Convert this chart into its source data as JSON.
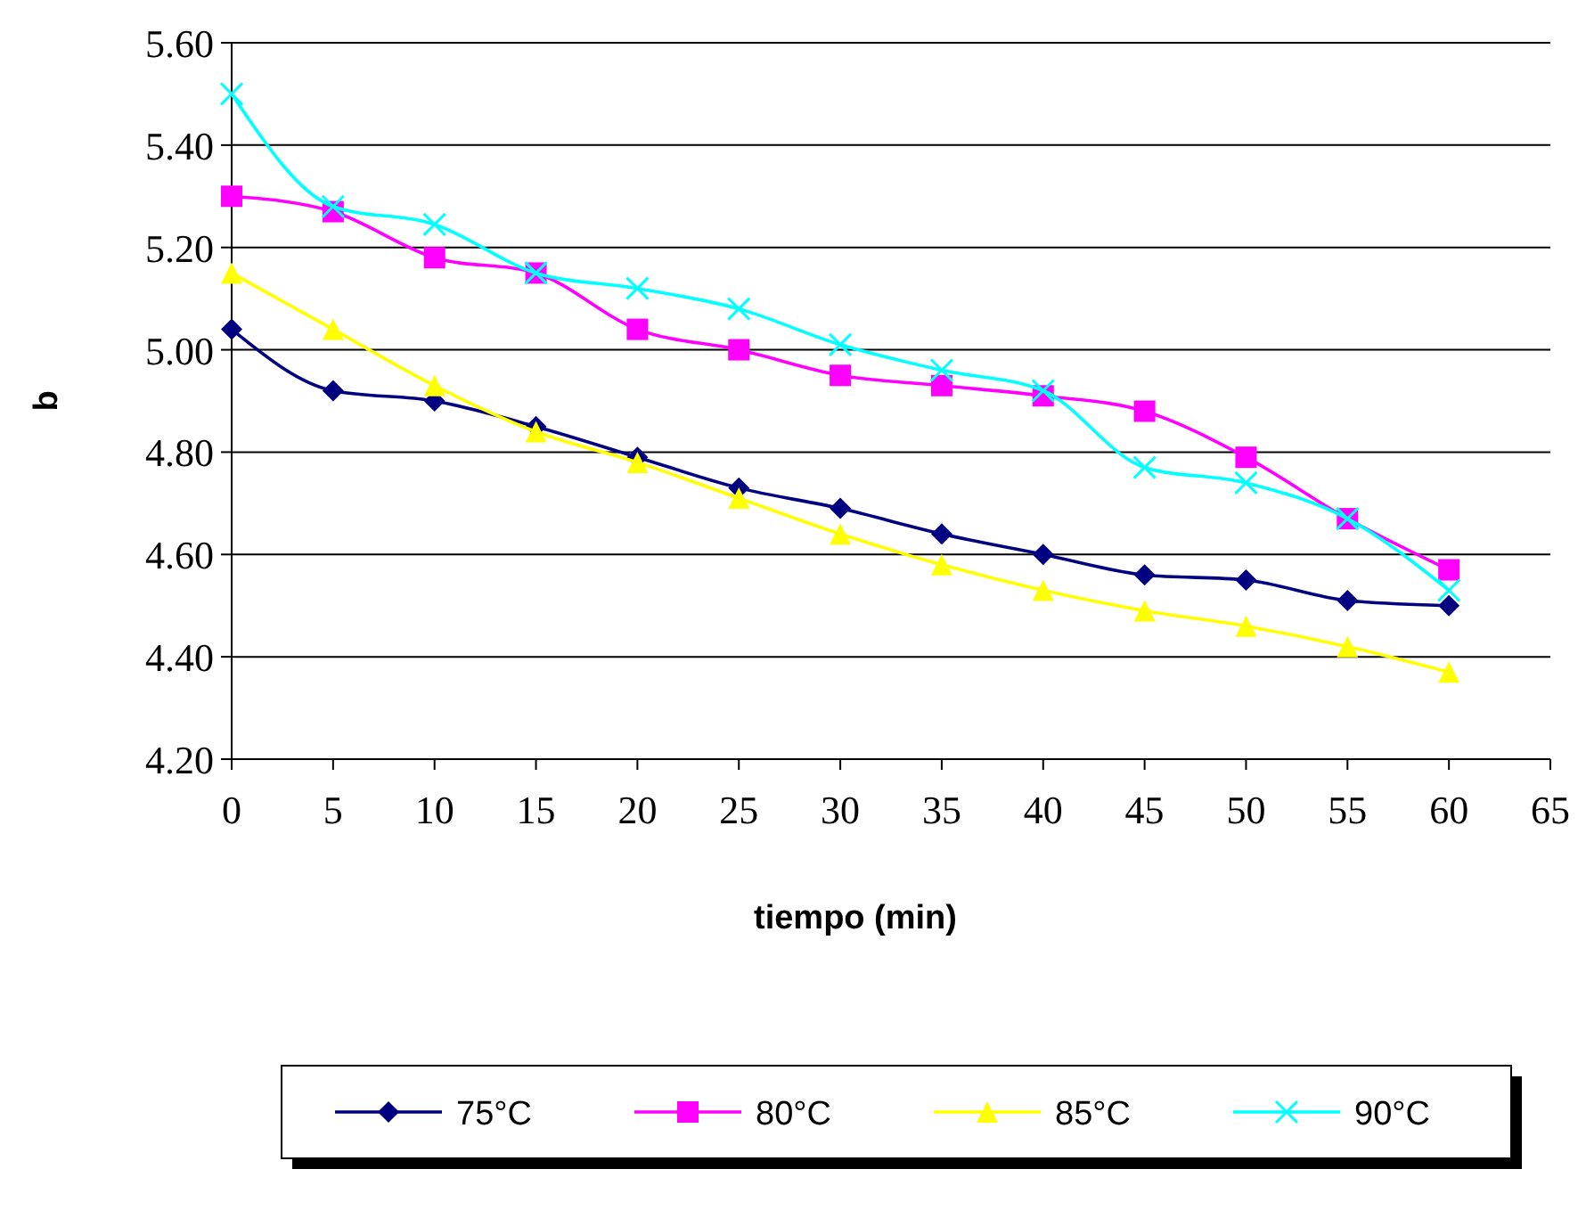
{
  "chart_data": {
    "type": "line",
    "xlabel": "tiempo (min)",
    "ylabel": "b",
    "x": [
      0,
      5,
      10,
      15,
      20,
      25,
      30,
      35,
      40,
      45,
      50,
      55,
      60
    ],
    "series": [
      {
        "name": "75°C",
        "color": "#000080",
        "marker": "diamond",
        "values": [
          5.04,
          4.92,
          4.9,
          4.85,
          4.79,
          4.73,
          4.69,
          4.64,
          4.6,
          4.56,
          4.55,
          4.51,
          4.5
        ]
      },
      {
        "name": "80°C",
        "color": "#ff00ff",
        "marker": "square",
        "values": [
          5.3,
          5.27,
          5.18,
          5.15,
          5.04,
          5.0,
          4.95,
          4.93,
          4.91,
          4.88,
          4.79,
          4.67,
          4.57
        ]
      },
      {
        "name": "85°C",
        "color": "#ffff00",
        "marker": "triangle",
        "values": [
          5.15,
          5.04,
          4.93,
          4.84,
          4.78,
          4.71,
          4.64,
          4.58,
          4.53,
          4.49,
          4.46,
          4.42,
          4.37
        ]
      },
      {
        "name": "90°C",
        "color": "#00ffff",
        "marker": "cross",
        "values": [
          5.5,
          5.28,
          5.245,
          5.15,
          5.12,
          5.08,
          5.01,
          4.96,
          4.92,
          4.77,
          4.74,
          4.67,
          4.53
        ]
      }
    ],
    "xlim": [
      0,
      65
    ],
    "xticks": [
      0,
      5,
      10,
      15,
      20,
      25,
      30,
      35,
      40,
      45,
      50,
      55,
      60,
      65
    ],
    "ylim": [
      4.2,
      5.6
    ],
    "yticks": [
      {
        "value": 4.2,
        "label": "4.20"
      },
      {
        "value": 4.4,
        "label": "4.40"
      },
      {
        "value": 4.6,
        "label": "4.60"
      },
      {
        "value": 4.8,
        "label": "4.80"
      },
      {
        "value": 5.0,
        "label": "5.00"
      },
      {
        "value": 5.2,
        "label": "5.20"
      },
      {
        "value": 5.4,
        "label": "5.40"
      },
      {
        "value": 5.6,
        "label": "5.60"
      }
    ],
    "grid": "y",
    "legend": "bottom"
  }
}
